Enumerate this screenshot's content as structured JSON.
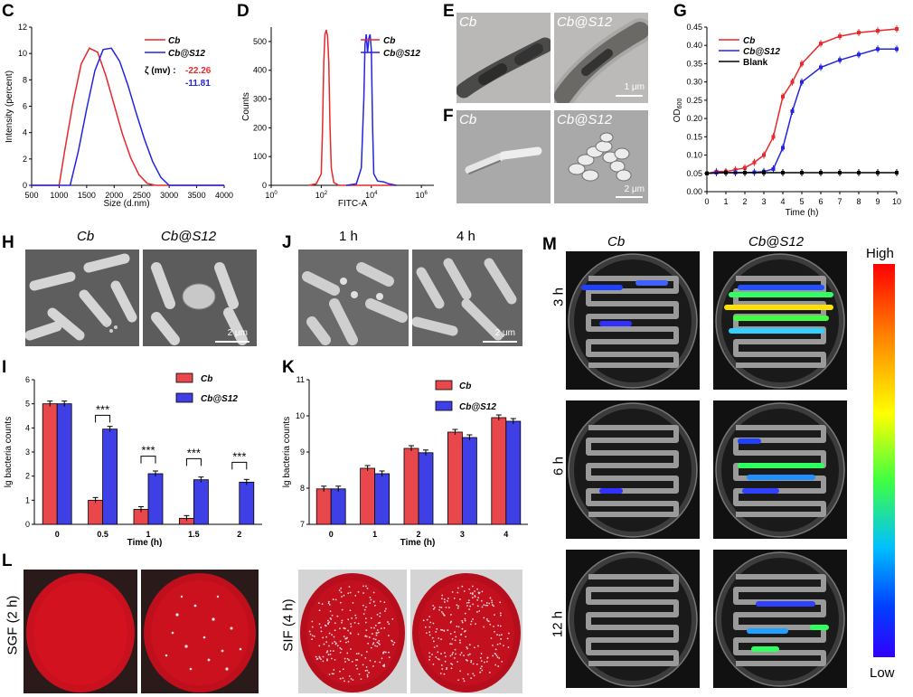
{
  "panels": {
    "C": "C",
    "D": "D",
    "E": "E",
    "F": "F",
    "G": "G",
    "H": "H",
    "I": "I",
    "J": "J",
    "K": "K",
    "L": "L",
    "M": "M"
  },
  "colors": {
    "cb": "#e8282b",
    "s12": "#2323e0",
    "blank": "#000000"
  },
  "panelC": {
    "chart_data": {
      "type": "line",
      "xlabel": "Size (d.nm)",
      "ylabel": "Intensity (percent)",
      "xlim": [
        500,
        4000
      ],
      "ylim": [
        0,
        12
      ],
      "xticks": [
        "500",
        "1000",
        "1500",
        "2000",
        "2500",
        "3000",
        "3500",
        "4000"
      ],
      "yticks": [
        "0",
        "2",
        "4",
        "6",
        "8",
        "10",
        "12"
      ],
      "series": [
        {
          "name": "Cb",
          "x": [
            500,
            1000,
            1100,
            1250,
            1400,
            1550,
            1700,
            1850,
            2000,
            2150,
            2300,
            2450,
            2600,
            2750,
            4000
          ],
          "y": [
            0,
            0,
            2.6,
            6.2,
            9.2,
            10.4,
            10.1,
            8.3,
            6.1,
            3.9,
            2.1,
            0.8,
            0.15,
            0,
            0
          ]
        },
        {
          "name": "Cb@S12",
          "x": [
            500,
            1200,
            1350,
            1500,
            1650,
            1800,
            1950,
            2100,
            2250,
            2400,
            2550,
            2700,
            2850,
            3000,
            4000
          ],
          "y": [
            0,
            0,
            2.6,
            5.8,
            8.7,
            10.3,
            10.4,
            9.4,
            7.6,
            5.5,
            3.5,
            1.8,
            0.6,
            0,
            0
          ]
        }
      ]
    },
    "legend": [
      "Cb",
      "Cb@S12"
    ],
    "zeta_label": "ζ (mv) :",
    "zeta_values": [
      "-22.26",
      "-11.81"
    ]
  },
  "panelD": {
    "chart_data": {
      "type": "line",
      "xlabel": "FITC-A",
      "ylabel": "Counts",
      "ylim": [
        0,
        550
      ],
      "yticks": [
        "0",
        "100",
        "200",
        "300",
        "400",
        "500"
      ],
      "xticks": [
        "10^0",
        "10^2",
        "10^4",
        "10^6"
      ],
      "series": [
        {
          "name": "Cb",
          "x": [
            1.5,
            1.8,
            2.0,
            2.05,
            2.1,
            2.15,
            2.2,
            2.25,
            2.3,
            2.35,
            2.4,
            2.5,
            2.7,
            5.0
          ],
          "y": [
            0,
            5,
            40,
            200,
            430,
            525,
            540,
            520,
            430,
            200,
            60,
            10,
            0,
            0
          ]
        },
        {
          "name": "Cb@S12",
          "x": [
            3.0,
            3.4,
            3.6,
            3.7,
            3.75,
            3.8,
            3.85,
            3.9,
            3.95,
            4.0,
            4.05,
            4.1,
            4.25,
            4.5,
            4.7,
            5.0
          ],
          "y": [
            0,
            5,
            60,
            300,
            490,
            525,
            460,
            510,
            525,
            470,
            200,
            40,
            15,
            12,
            5,
            0
          ]
        }
      ]
    },
    "legend": [
      "Cb",
      "Cb@S12"
    ]
  },
  "panelE": {
    "left": "Cb",
    "right": "Cb@S12",
    "scale": "1 μm"
  },
  "panelF": {
    "left": "Cb",
    "right": "Cb@S12",
    "scale": "2 μm"
  },
  "panelG": {
    "chart_data": {
      "type": "line",
      "xlabel": "Time (h)",
      "ylabel": "OD600",
      "xlim": [
        0,
        10
      ],
      "ylim": [
        0,
        0.45
      ],
      "xticks": [
        "0",
        "1",
        "2",
        "3",
        "4",
        "5",
        "6",
        "7",
        "8",
        "9",
        "10"
      ],
      "yticks": [
        "0.00",
        "0.05",
        "0.10",
        "0.15",
        "0.20",
        "0.25",
        "0.30",
        "0.35",
        "0.40",
        "0.45"
      ],
      "series": [
        {
          "name": "Cb",
          "x": [
            0,
            0.5,
            1,
            1.5,
            2,
            2.5,
            3,
            3.5,
            4,
            4.5,
            5,
            6,
            7,
            8,
            9,
            10
          ],
          "y": [
            0.05,
            0.055,
            0.055,
            0.06,
            0.065,
            0.08,
            0.1,
            0.15,
            0.26,
            0.3,
            0.35,
            0.405,
            0.425,
            0.435,
            0.44,
            0.445
          ]
        },
        {
          "name": "Cb@S12",
          "x": [
            0,
            0.5,
            1,
            1.5,
            2,
            2.5,
            3,
            3.5,
            4,
            4.5,
            5,
            6,
            7,
            8,
            9,
            10
          ],
          "y": [
            0.05,
            0.052,
            0.052,
            0.052,
            0.052,
            0.053,
            0.055,
            0.062,
            0.12,
            0.22,
            0.3,
            0.34,
            0.36,
            0.375,
            0.39,
            0.39
          ]
        },
        {
          "name": "Blank",
          "x": [
            0,
            1,
            2,
            3,
            4,
            5,
            6,
            7,
            8,
            9,
            10
          ],
          "y": [
            0.05,
            0.052,
            0.052,
            0.052,
            0.052,
            0.052,
            0.052,
            0.052,
            0.052,
            0.052,
            0.052
          ]
        }
      ]
    },
    "legend": [
      "Cb",
      "Cb@S12",
      "Blank"
    ]
  },
  "panelH": {
    "left": "Cb",
    "right": "Cb@S12",
    "scale": "2 μm"
  },
  "panelJ": {
    "left": "1 h",
    "right": "4 h",
    "scale": "2 μm"
  },
  "panelI": {
    "chart_data": {
      "type": "bar",
      "xlabel": "Time (h)",
      "ylabel": "lg bacteria counts",
      "categories": [
        "0",
        "0.5",
        "1",
        "1.5",
        "2"
      ],
      "ylim": [
        0,
        6
      ],
      "yticks": [
        "0",
        "1",
        "2",
        "3",
        "4",
        "5",
        "6"
      ],
      "series": [
        {
          "name": "Cb",
          "values": [
            5.0,
            1.0,
            0.62,
            0.25,
            0
          ]
        },
        {
          "name": "Cb@S12",
          "values": [
            5.0,
            3.95,
            2.1,
            1.85,
            1.75
          ]
        }
      ],
      "annotations": [
        "***",
        "***",
        "***",
        "***"
      ]
    },
    "legend": [
      "Cb",
      "Cb@S12"
    ]
  },
  "panelK": {
    "chart_data": {
      "type": "bar",
      "xlabel": "Time (h)",
      "ylabel": "lg bacteria counts",
      "categories": [
        "0",
        "1",
        "2",
        "3",
        "4"
      ],
      "ylim": [
        7,
        11
      ],
      "yticks": [
        "7",
        "8",
        "9",
        "10",
        "11"
      ],
      "series": [
        {
          "name": "Cb",
          "values": [
            7.98,
            8.55,
            9.1,
            9.55,
            9.95
          ]
        },
        {
          "name": "Cb@S12",
          "values": [
            7.98,
            8.4,
            8.98,
            9.4,
            9.85
          ]
        }
      ]
    },
    "legend": [
      "Cb",
      "Cb@S12"
    ]
  },
  "panelL": {
    "sgf": "SGF (2 h)",
    "sif": "SIF (4 h)"
  },
  "panelM": {
    "left": "Cb",
    "right": "Cb@S12",
    "rows": [
      "3 h",
      "6 h",
      "12 h"
    ],
    "high": "High",
    "low": "Low"
  }
}
